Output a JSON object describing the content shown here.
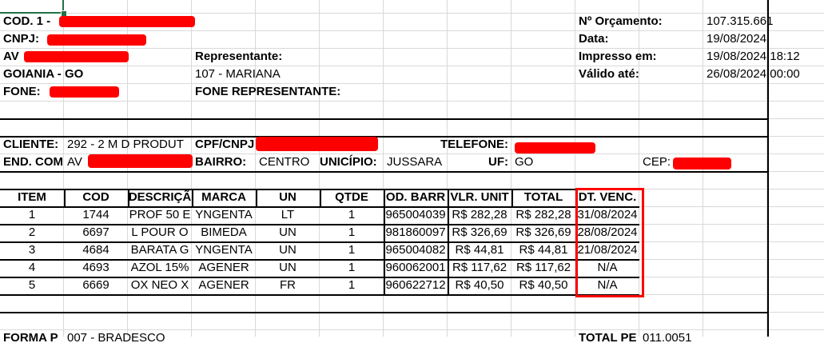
{
  "company": {
    "cod_label": "COD. 1 -",
    "cnpj_label": "CNPJ:",
    "address_label": "AV",
    "city": "GOIANIA - GO",
    "phone_label": "FONE:"
  },
  "representative": {
    "label": "Representante:",
    "value": "107 - MARIANA",
    "phone_label": "FONE REPRESENTANTE:"
  },
  "quote": {
    "number_label": "Nº Orçamento:",
    "number": "107.315.661",
    "date_label": "Data:",
    "date": "19/08/2024",
    "printed_label": "Impresso em:",
    "printed": "19/08/2024 18:12",
    "valid_label": "Válido até:",
    "valid": "26/08/2024 00:00"
  },
  "client": {
    "client_label": "CLIENTE:",
    "client_value": "292 - 2 M D PRODUT",
    "cpf_label": "CPF/CNPJ",
    "phone_label": "TELEFONE:",
    "address_label": "END. COM",
    "address_value": "AV",
    "district_label": "BAIRRO:",
    "district_value": "CENTRO",
    "city_label": "UNICÍPIO:",
    "city_value": "JUSSARA",
    "state_label": "UF:",
    "state_value": "GO",
    "cep_label": "CEP:"
  },
  "table": {
    "headers": [
      "ITEM",
      "COD",
      "DESCRIÇÃ",
      "MARCA",
      "UN",
      "QTDE",
      "OD. BARR",
      "VLR. UNIT",
      "TOTAL",
      "DT. VENC."
    ],
    "rows": [
      [
        "1",
        "1744",
        "PROF 50 E",
        "YNGENTA",
        "LT",
        "1",
        "965004039",
        "R$ 282,28",
        "R$ 282,28",
        "31/08/2024"
      ],
      [
        "2",
        "6697",
        "L POUR O",
        "BIMEDA",
        "UN",
        "1",
        "981860097",
        "R$ 326,69",
        "R$ 326,69",
        "28/08/2024"
      ],
      [
        "3",
        "4684",
        "BARATA G",
        "YNGENTA",
        "UN",
        "1",
        "965004082",
        "R$ 44,81",
        "R$ 44,81",
        "21/08/2024"
      ],
      [
        "4",
        "4693",
        "AZOL 15%",
        "AGENER",
        "UN",
        "1",
        "960062001",
        "R$ 117,62",
        "R$ 117,62",
        "N/A"
      ],
      [
        "5",
        "6669",
        "OX NEO X",
        "AGENER",
        "FR",
        "1",
        "960622712",
        "R$ 40,50",
        "R$ 40,50",
        "N/A"
      ]
    ]
  },
  "footer": {
    "payment_label": "FORMA P",
    "payment_value": "007 - BRADESCO",
    "total_label": "TOTAL PE",
    "total_value": "011.0051"
  },
  "colors": {
    "highlight": "#ff0000",
    "redaction": "#ff0000",
    "selection": "#217346"
  }
}
